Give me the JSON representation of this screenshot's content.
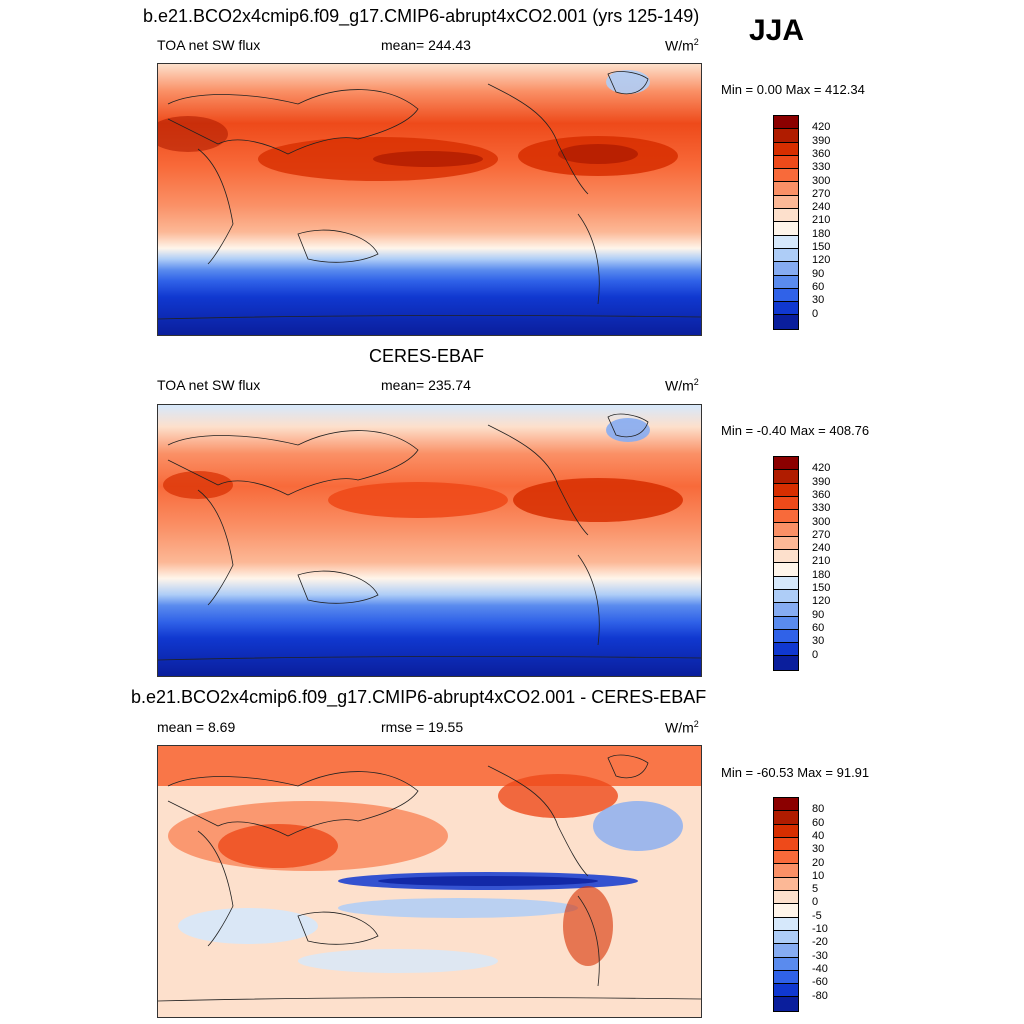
{
  "season": "JJA",
  "panels": [
    {
      "title": "b.e21.BCO2x4cmip6.f09_g17.CMIP6-abrupt4xCO2.001 (yrs 125-149)",
      "left_label": "TOA net SW flux",
      "center_label": "mean= 244.43",
      "units": "W/m",
      "units_exp": "2",
      "minmax": "Min =   0.00 Max = 412.34",
      "colorbar_labels": [
        "420",
        "390",
        "360",
        "330",
        "300",
        "270",
        "240",
        "210",
        "180",
        "150",
        "120",
        "90",
        "60",
        "30",
        "0"
      ],
      "colorbar_colors": [
        "#8b0000",
        "#b01c00",
        "#d72e00",
        "#ee4a1a",
        "#f86a3a",
        "#fa9066",
        "#fcb896",
        "#fde0cc",
        "#fff5ea",
        "#d6e8fb",
        "#aecdf7",
        "#86acf2",
        "#5a8bee",
        "#3062e8",
        "#1038d0",
        "#0a1e9c"
      ]
    },
    {
      "title": "CERES-EBAF",
      "left_label": "TOA net SW flux",
      "center_label": "mean= 235.74",
      "units": "W/m",
      "units_exp": "2",
      "minmax": "Min =  -0.40 Max = 408.76",
      "colorbar_labels": [
        "420",
        "390",
        "360",
        "330",
        "300",
        "270",
        "240",
        "210",
        "180",
        "150",
        "120",
        "90",
        "60",
        "30",
        "0"
      ],
      "colorbar_colors": [
        "#8b0000",
        "#b01c00",
        "#d72e00",
        "#ee4a1a",
        "#f86a3a",
        "#fa9066",
        "#fcb896",
        "#fde0cc",
        "#fff5ea",
        "#d6e8fb",
        "#aecdf7",
        "#86acf2",
        "#5a8bee",
        "#3062e8",
        "#1038d0",
        "#0a1e9c"
      ]
    },
    {
      "title": "b.e21.BCO2x4cmip6.f09_g17.CMIP6-abrupt4xCO2.001 - CERES-EBAF",
      "left_label": "mean =   8.69",
      "center_label": "rmse =  19.55",
      "units": "W/m",
      "units_exp": "2",
      "minmax": "Min = -60.53 Max =  91.91",
      "colorbar_labels": [
        "80",
        "60",
        "40",
        "30",
        "20",
        "10",
        "5",
        "0",
        "-5",
        "-10",
        "-20",
        "-30",
        "-40",
        "-60",
        "-80"
      ],
      "colorbar_colors": [
        "#8b0000",
        "#b01c00",
        "#d72e00",
        "#ee4a1a",
        "#f86a3a",
        "#fa9066",
        "#fcb896",
        "#fde0cc",
        "#fff5ea",
        "#d6e8fb",
        "#aecdf7",
        "#86acf2",
        "#5a8bee",
        "#3062e8",
        "#1038d0",
        "#0a1e9c"
      ]
    }
  ]
}
